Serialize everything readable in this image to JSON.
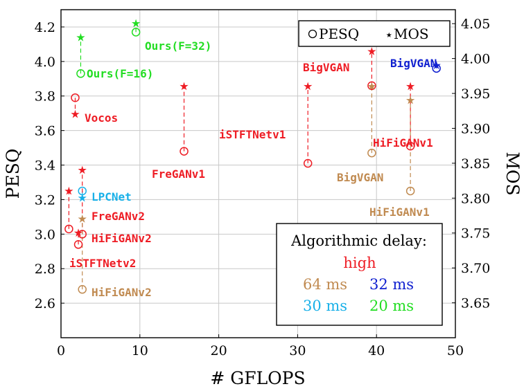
{
  "chart_data": {
    "type": "scatter",
    "xlabel": "# GFLOPS",
    "ylabel_left": "PESQ",
    "ylabel_right": "MOS",
    "xlim": [
      0,
      50
    ],
    "ylim_left": [
      2.4,
      4.3
    ],
    "ylim_right": [
      3.6,
      4.07
    ],
    "x_ticks": [
      "0",
      "10",
      "20",
      "30",
      "40",
      "50"
    ],
    "y_ticks_left": [
      "2.6",
      "2.8",
      "3.0",
      "3.2",
      "3.4",
      "3.6",
      "3.8",
      "4.0",
      "4.2"
    ],
    "y_ticks_right": [
      "3.65",
      "3.70",
      "3.75",
      "3.80",
      "3.85",
      "3.90",
      "3.95",
      "4.00",
      "4.05"
    ],
    "grid": true,
    "legend": {
      "pesq_label": "PESQ",
      "mos_label": "MOS",
      "pesq_symbol": "○",
      "mos_symbol": "⋆"
    },
    "delay_legend": {
      "title": "Algorithmic delay:",
      "high": "high",
      "d64": "64 ms",
      "d32": "32 ms",
      "d30": "30 ms",
      "d20": "20 ms"
    },
    "colors": {
      "high": "#ee1c24",
      "d64": "#c08a50",
      "d32": "#1020d0",
      "d30": "#18b0e8",
      "d20": "#22dd22"
    },
    "series": [
      {
        "name": "Ours(F=32)",
        "group": "d20",
        "gflops": 9.5,
        "pesq": 4.17,
        "mos": 4.05
      },
      {
        "name": "Ours(F=16)",
        "group": "d20",
        "gflops": 2.5,
        "pesq": 3.93,
        "mos": 4.03
      },
      {
        "name": "Vocos",
        "group": "high",
        "gflops": 1.8,
        "pesq": 3.79,
        "mos": 3.92
      },
      {
        "name": "FreGANv1",
        "group": "high",
        "gflops": 15.6,
        "pesq": 3.48,
        "mos": 3.96
      },
      {
        "name": "iSTFTNetv1",
        "group": "high",
        "gflops": 31.3,
        "pesq": 3.41,
        "mos": 3.96
      },
      {
        "name": "BigVGAN",
        "group": "high",
        "gflops": 39.4,
        "pesq": 3.86,
        "mos": 4.01
      },
      {
        "name": "BigVGAN",
        "group": "d64",
        "gflops": 39.4,
        "pesq": 3.47,
        "mos": 3.96
      },
      {
        "name": "HiFiGANv1",
        "group": "high",
        "gflops": 44.3,
        "pesq": 3.51,
        "mos": 3.96
      },
      {
        "name": "HiFiGANv1",
        "group": "d64",
        "gflops": 44.3,
        "pesq": 3.25,
        "mos": 3.94
      },
      {
        "name": "BigVGAN",
        "group": "d32",
        "gflops": 47.6,
        "pesq": 3.96,
        "mos": 3.99
      },
      {
        "name": "LPCNet",
        "group": "d30",
        "gflops": 2.7,
        "pesq": 3.25,
        "mos": 3.8
      },
      {
        "name": "FreGANv2",
        "group": "high",
        "gflops": 2.7,
        "pesq": 3.0,
        "mos": 3.84
      },
      {
        "name": "HiFiGANv2",
        "group": "high",
        "gflops": 2.2,
        "pesq": 2.94,
        "mos": 3.75
      },
      {
        "name": "iSTFTNetv2",
        "group": "high",
        "gflops": 1.0,
        "pesq": 3.03,
        "mos": 3.81
      },
      {
        "name": "HiFiGANv2",
        "group": "d64",
        "gflops": 2.7,
        "pesq": 2.68,
        "mos": 3.77
      }
    ]
  }
}
